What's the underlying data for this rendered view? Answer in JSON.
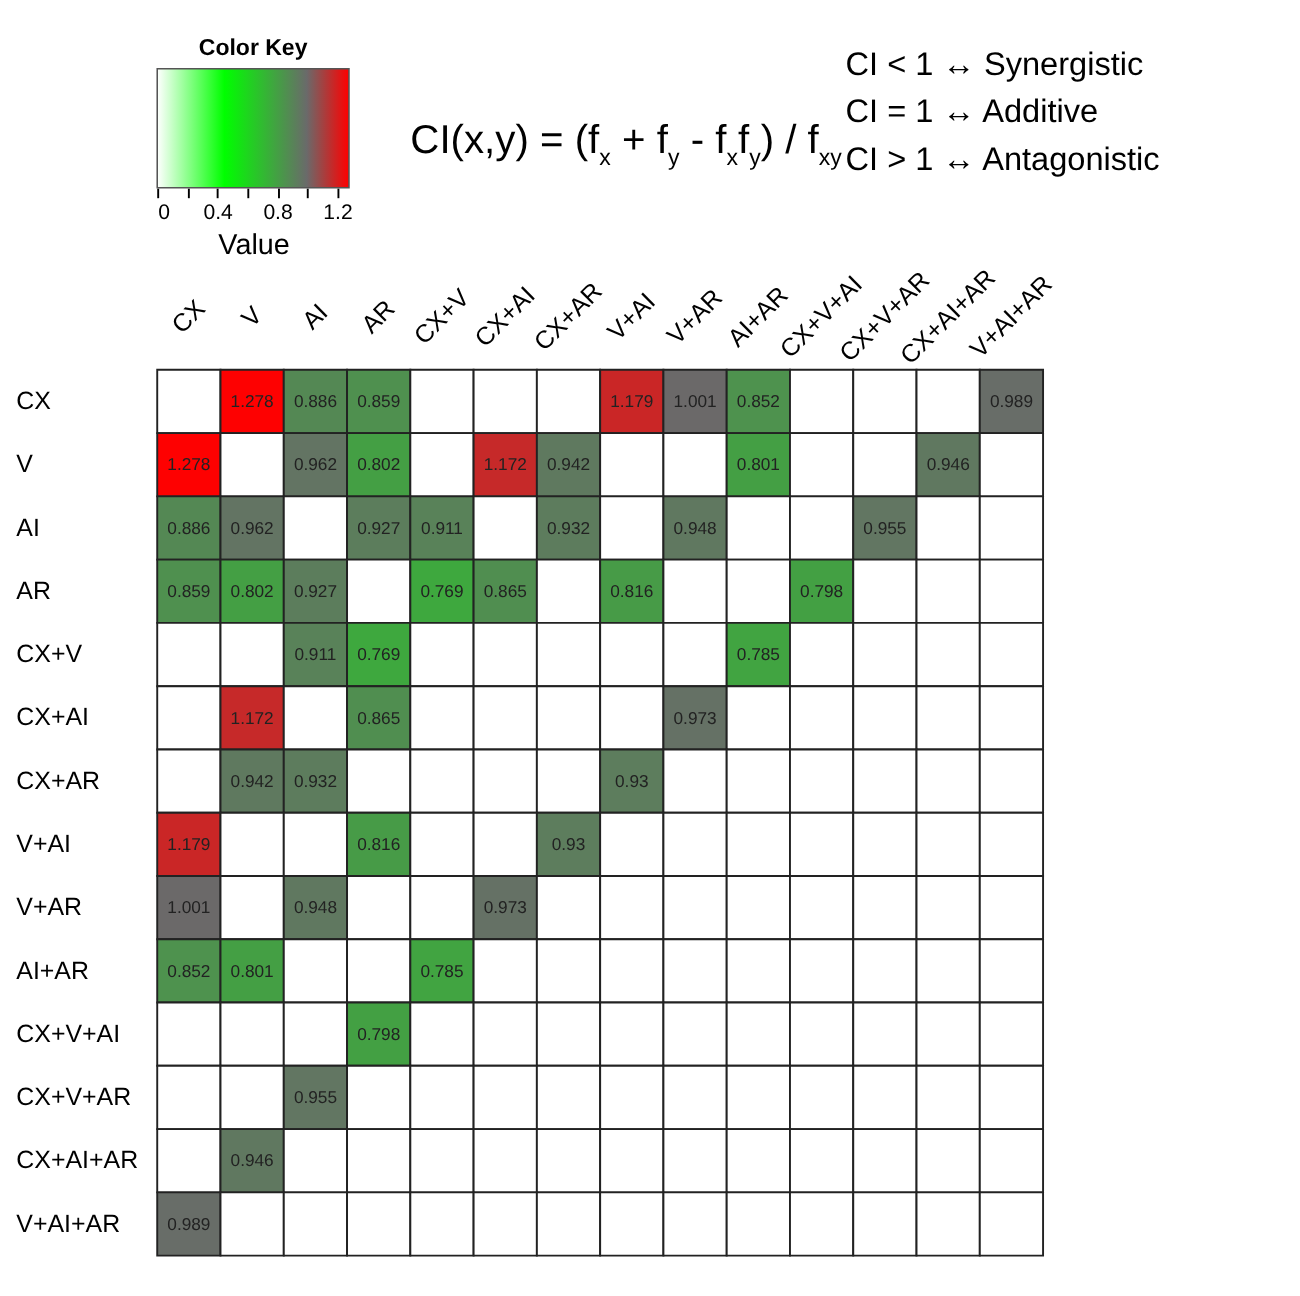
{
  "chart_data": {
    "type": "heatmap",
    "legend_title": "Color Key",
    "clabel": "Value",
    "categories": [
      "CX",
      "V",
      "AI",
      "AR",
      "CX+V",
      "CX+AI",
      "CX+AR",
      "V+AI",
      "V+AR",
      "AI+AR",
      "CX+V+AI",
      "CX+V+AR",
      "CX+AI+AR",
      "V+AI+AR"
    ],
    "y_categories": [
      "CX",
      "V",
      "AI",
      "AR",
      "CX+V",
      "CX+AI",
      "CX+AR",
      "V+AI",
      "V+AR",
      "AI+AR",
      "CX+V+AI",
      "CX+V+AR",
      "CX+AI+AR",
      "V+AI+AR"
    ],
    "cells": [
      [
        null,
        1.278,
        0.886,
        0.859,
        null,
        null,
        null,
        1.179,
        1.001,
        0.852,
        null,
        null,
        null,
        0.989
      ],
      [
        1.278,
        null,
        0.962,
        0.802,
        null,
        1.172,
        0.942,
        null,
        null,
        0.801,
        null,
        null,
        0.946,
        null
      ],
      [
        0.886,
        0.962,
        null,
        0.927,
        0.911,
        null,
        0.932,
        null,
        0.948,
        null,
        null,
        0.955,
        null,
        null
      ],
      [
        0.859,
        0.802,
        0.927,
        null,
        0.769,
        0.865,
        null,
        0.816,
        null,
        null,
        0.798,
        null,
        null,
        null
      ],
      [
        null,
        null,
        0.911,
        0.769,
        null,
        null,
        null,
        null,
        null,
        0.785,
        null,
        null,
        null,
        null
      ],
      [
        null,
        1.172,
        null,
        0.865,
        null,
        null,
        null,
        null,
        0.973,
        null,
        null,
        null,
        null,
        null
      ],
      [
        null,
        0.942,
        0.932,
        null,
        null,
        null,
        null,
        0.93,
        null,
        null,
        null,
        null,
        null,
        null
      ],
      [
        1.179,
        null,
        null,
        0.816,
        null,
        null,
        0.93,
        null,
        null,
        null,
        null,
        null,
        null,
        null
      ],
      [
        1.001,
        null,
        0.948,
        null,
        null,
        0.973,
        null,
        null,
        null,
        null,
        null,
        null,
        null,
        null
      ],
      [
        0.852,
        0.801,
        null,
        null,
        0.785,
        null,
        null,
        null,
        null,
        null,
        null,
        null,
        null,
        null
      ],
      [
        null,
        null,
        null,
        0.798,
        null,
        null,
        null,
        null,
        null,
        null,
        null,
        null,
        null,
        null
      ],
      [
        null,
        null,
        0.955,
        null,
        null,
        null,
        null,
        null,
        null,
        null,
        null,
        null,
        null,
        null
      ],
      [
        null,
        0.946,
        null,
        null,
        null,
        null,
        null,
        null,
        null,
        null,
        null,
        null,
        null,
        null
      ],
      [
        0.989,
        null,
        null,
        null,
        null,
        null,
        null,
        null,
        null,
        null,
        null,
        null,
        null,
        null
      ]
    ],
    "data_labels": true,
    "clim": [
      0,
      1.28
    ],
    "cticks": [
      0,
      {
        "value": 0.2,
        "label": null
      },
      0.4,
      {
        "value": 0.6,
        "label": null
      },
      0.8,
      {
        "value": 1.0,
        "label": null
      },
      1.2
    ],
    "annotations": [
      "CI(x,y) = (f$_{x}$ + f$_{y}$ - f$_{x}$f$_{y}$) / f$_{xy}$",
      "CI < 1 ↔ Synergistic",
      "CI = 1 ↔ Additive",
      "CI > 1 ↔ Antagonistic"
    ]
  }
}
